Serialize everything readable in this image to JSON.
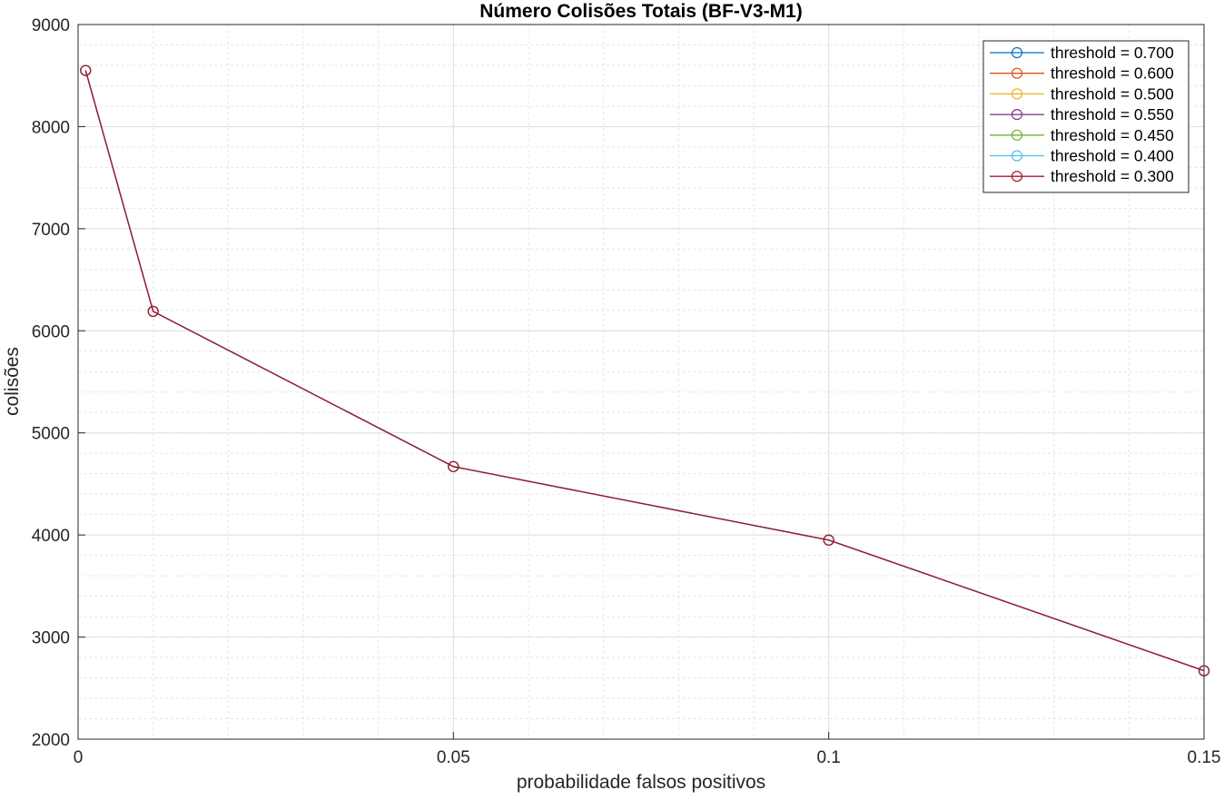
{
  "chart_data": {
    "type": "line",
    "title": "Número Colisões Totais (BF-V3-M1)",
    "xlabel": "probabilidade falsos positivos",
    "ylabel": "colisões",
    "xlim": [
      0,
      0.15
    ],
    "ylim": [
      2000,
      9000
    ],
    "xticks": [
      0,
      0.05,
      0.1,
      0.15
    ],
    "xtick_labels": [
      "0",
      "0.05",
      "0.1",
      "0.15"
    ],
    "yticks": [
      2000,
      3000,
      4000,
      5000,
      6000,
      7000,
      8000,
      9000
    ],
    "ytick_labels": [
      "2000",
      "3000",
      "4000",
      "5000",
      "6000",
      "7000",
      "8000",
      "9000"
    ],
    "grid": true,
    "minor_grid": true,
    "legend_position": "top-right",
    "marker": "circle",
    "x": [
      0.001,
      0.01,
      0.05,
      0.1,
      0.15
    ],
    "series": [
      {
        "name": "threshold = 0.700",
        "color": "#0072BD",
        "values": [
          8550,
          6190,
          4670,
          3950,
          2670
        ]
      },
      {
        "name": "threshold = 0.600",
        "color": "#D95319",
        "values": [
          8550,
          6190,
          4670,
          3950,
          2670
        ]
      },
      {
        "name": "threshold = 0.500",
        "color": "#EDB120",
        "values": [
          8550,
          6190,
          4670,
          3950,
          2670
        ]
      },
      {
        "name": "threshold = 0.550",
        "color": "#7E2F8E",
        "values": [
          8550,
          6190,
          4670,
          3950,
          2670
        ]
      },
      {
        "name": "threshold = 0.450",
        "color": "#77AC30",
        "values": [
          8550,
          6190,
          4670,
          3950,
          2670
        ]
      },
      {
        "name": "threshold = 0.400",
        "color": "#4DBEEE",
        "values": [
          8550,
          6190,
          4670,
          3950,
          2670
        ]
      },
      {
        "name": "threshold = 0.300",
        "color": "#A2142F",
        "values": [
          8550,
          6190,
          4670,
          3950,
          2670
        ]
      }
    ]
  }
}
